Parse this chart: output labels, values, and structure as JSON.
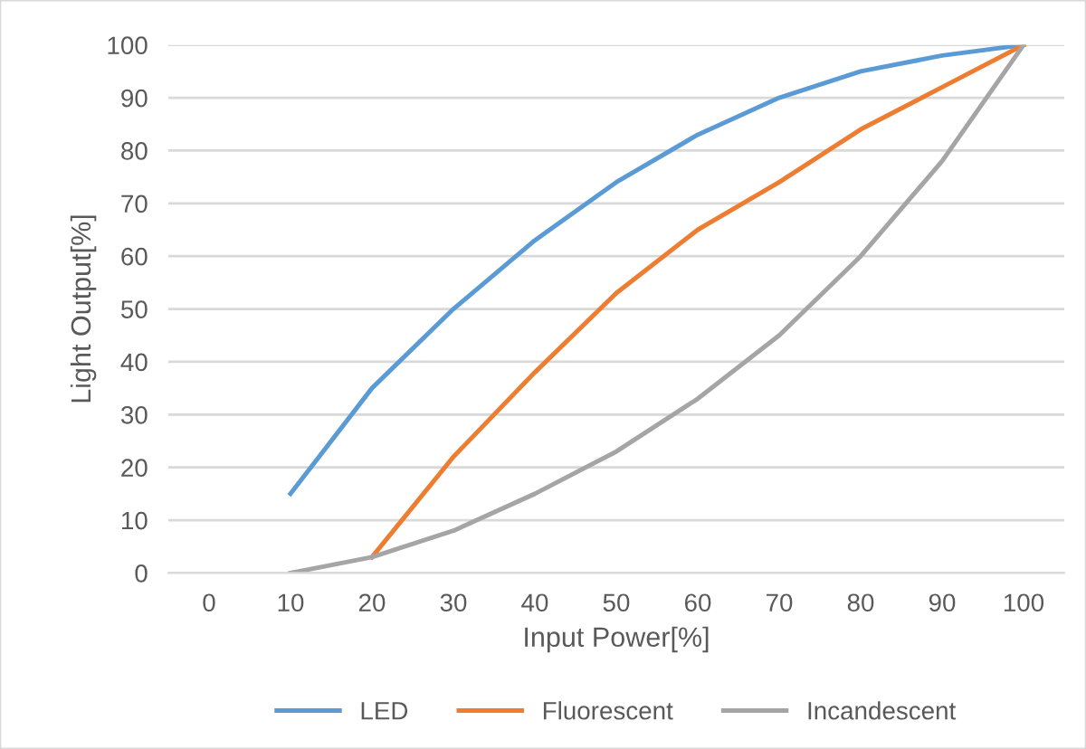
{
  "chart_data": {
    "type": "line",
    "xlabel": "Input Power[%]",
    "ylabel": "Light Output[%]",
    "categories": [
      "0",
      "10",
      "20",
      "30",
      "40",
      "50",
      "60",
      "70",
      "80",
      "90",
      "100"
    ],
    "series": [
      {
        "name": "LED",
        "color": "#5b9bd5",
        "values": [
          null,
          15,
          35,
          50,
          63,
          74,
          83,
          90,
          95,
          98,
          100
        ]
      },
      {
        "name": "Fluorescent",
        "color": "#ed7d31",
        "values": [
          null,
          null,
          3,
          22,
          38,
          53,
          65,
          74,
          84,
          92,
          100
        ]
      },
      {
        "name": "Incandescent",
        "color": "#a5a5a5",
        "values": [
          null,
          0,
          3,
          8,
          15,
          23,
          33,
          45,
          60,
          78,
          100
        ]
      }
    ],
    "ylim": [
      0,
      100
    ],
    "yticks": [
      0,
      10,
      20,
      30,
      40,
      50,
      60,
      70,
      80,
      90,
      100
    ],
    "grid": "y",
    "legend": "bottom",
    "marker": "none",
    "line_style": "solid"
  }
}
